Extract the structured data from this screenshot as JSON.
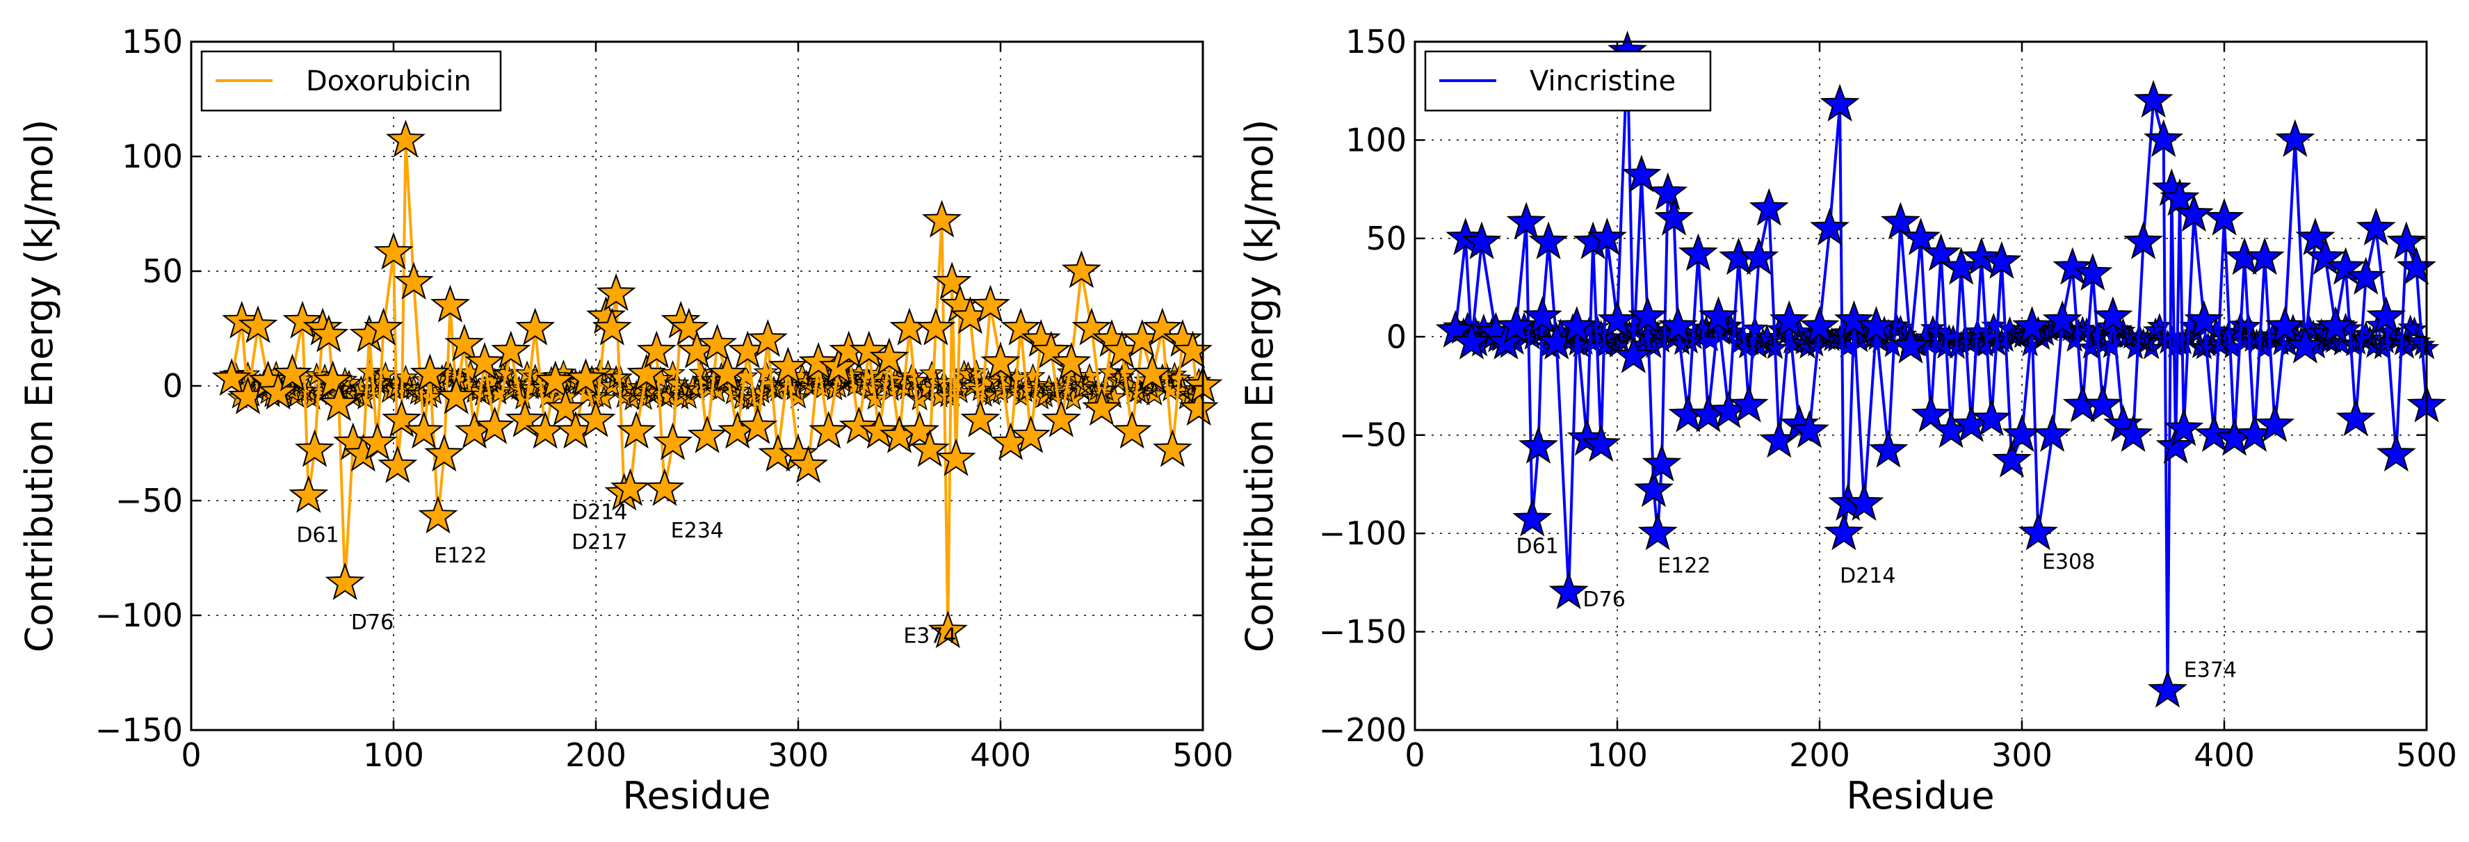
{
  "chart_data": [
    {
      "type": "line",
      "marker": "star",
      "xlabel": "Residue",
      "ylabel": "Contribution Energy (kJ/mol)",
      "xlim": [
        0,
        500
      ],
      "ylim": [
        -150,
        150
      ],
      "xticks": [
        0,
        100,
        200,
        300,
        400,
        500
      ],
      "yticks": [
        -150,
        -100,
        -50,
        0,
        50,
        100,
        150
      ],
      "xtick_labels": [
        "0",
        "100",
        "200",
        "300",
        "400",
        "500"
      ],
      "ytick_labels": [
        "−150",
        "−100",
        "−50",
        "0",
        "50",
        "100",
        "150"
      ],
      "grid": true,
      "legend_position": "top-left",
      "series": [
        {
          "name": "Doxorubicin",
          "color": "#FFA500",
          "marker_color": "#FFA500",
          "x": [
            20,
            25,
            28,
            33,
            38,
            43,
            50,
            55,
            58,
            61,
            65,
            68,
            70,
            73,
            76,
            80,
            85,
            88,
            92,
            95,
            100,
            102,
            104,
            106,
            110,
            115,
            118,
            122,
            125,
            128,
            131,
            135,
            140,
            145,
            150,
            158,
            165,
            170,
            175,
            180,
            185,
            190,
            195,
            200,
            205,
            208,
            210,
            214,
            217,
            220,
            225,
            230,
            234,
            238,
            242,
            246,
            250,
            255,
            260,
            265,
            270,
            275,
            280,
            285,
            290,
            295,
            300,
            305,
            310,
            315,
            320,
            325,
            330,
            335,
            340,
            345,
            350,
            355,
            360,
            365,
            368,
            371,
            374,
            376,
            378,
            380,
            385,
            390,
            395,
            400,
            405,
            410,
            415,
            420,
            425,
            430,
            435,
            440,
            445,
            450,
            455,
            460,
            465,
            470,
            475,
            480,
            485,
            490,
            495,
            498,
            500
          ],
          "values": [
            3,
            28,
            -5,
            26,
            2,
            -3,
            5,
            28,
            -48,
            -28,
            25,
            22,
            2,
            -8,
            -86,
            -25,
            -30,
            22,
            -25,
            25,
            58,
            -35,
            -15,
            107,
            45,
            -20,
            5,
            -57,
            -30,
            35,
            -5,
            18,
            -20,
            10,
            -18,
            15,
            -15,
            25,
            -20,
            2,
            -10,
            -20,
            3,
            -15,
            30,
            25,
            40,
            -47,
            -45,
            -20,
            5,
            15,
            -45,
            -25,
            28,
            25,
            15,
            -22,
            18,
            5,
            -20,
            15,
            -18,
            20,
            -30,
            8,
            -30,
            -35,
            10,
            -20,
            8,
            15,
            -18,
            15,
            -20,
            12,
            -22,
            25,
            -20,
            -28,
            25,
            72,
            -107,
            45,
            -32,
            35,
            30,
            -15,
            35,
            10,
            -25,
            25,
            -22,
            20,
            15,
            -15,
            10,
            50,
            25,
            -10,
            20,
            15,
            -20,
            20,
            5,
            25,
            -28,
            20,
            15,
            -10,
            0
          ]
        }
      ],
      "annotations": [
        {
          "text": "D61",
          "x": 52,
          "y": -68
        },
        {
          "text": "D76",
          "x": 79,
          "y": -106
        },
        {
          "text": "E122",
          "x": 120,
          "y": -77
        },
        {
          "text": "D214",
          "x": 188,
          "y": -58
        },
        {
          "text": "D217",
          "x": 188,
          "y": -71
        },
        {
          "text": "E234",
          "x": 237,
          "y": -66
        },
        {
          "text": "E374",
          "x": 352,
          "y": -112
        }
      ]
    },
    {
      "type": "line",
      "marker": "star",
      "xlabel": "Residue",
      "ylabel": "Contribution Energy (kJ/mol)",
      "xlim": [
        0,
        500
      ],
      "ylim": [
        -200,
        150
      ],
      "xticks": [
        0,
        100,
        200,
        300,
        400,
        500
      ],
      "yticks": [
        -200,
        -150,
        -100,
        -50,
        0,
        50,
        100,
        150
      ],
      "xtick_labels": [
        "0",
        "100",
        "200",
        "300",
        "400",
        "500"
      ],
      "ytick_labels": [
        "−200",
        "−150",
        "−100",
        "−50",
        "0",
        "50",
        "100",
        "150"
      ],
      "grid": true,
      "legend_position": "top-left",
      "series": [
        {
          "name": "Vincristine",
          "color": "#0000FF",
          "marker_color": "#0000FF",
          "x": [
            20,
            25,
            28,
            33,
            40,
            45,
            50,
            55,
            58,
            61,
            63,
            66,
            70,
            76,
            80,
            85,
            88,
            92,
            95,
            100,
            105,
            108,
            112,
            115,
            118,
            120,
            122,
            125,
            128,
            130,
            135,
            140,
            145,
            150,
            155,
            160,
            165,
            170,
            175,
            180,
            185,
            190,
            195,
            200,
            205,
            210,
            212,
            214,
            217,
            222,
            228,
            234,
            240,
            245,
            250,
            255,
            260,
            265,
            270,
            275,
            280,
            285,
            290,
            295,
            300,
            305,
            308,
            315,
            320,
            325,
            330,
            335,
            340,
            345,
            350,
            355,
            360,
            365,
            370,
            372,
            374,
            376,
            378,
            380,
            385,
            390,
            395,
            400,
            405,
            410,
            415,
            420,
            425,
            430,
            435,
            440,
            445,
            450,
            455,
            460,
            465,
            470,
            475,
            480,
            485,
            490,
            495,
            500
          ],
          "values": [
            3,
            50,
            -3,
            48,
            2,
            -3,
            5,
            58,
            -93,
            -56,
            10,
            48,
            -3,
            -130,
            5,
            -52,
            48,
            -55,
            50,
            8,
            145,
            -10,
            82,
            10,
            -78,
            -100,
            -65,
            73,
            60,
            5,
            -40,
            42,
            -40,
            10,
            -38,
            40,
            -35,
            40,
            65,
            -53,
            8,
            -45,
            -48,
            5,
            55,
            118,
            -100,
            -85,
            8,
            -85,
            5,
            -58,
            58,
            -5,
            50,
            -40,
            42,
            -48,
            35,
            -45,
            40,
            -42,
            38,
            -63,
            -50,
            5,
            -100,
            -50,
            8,
            35,
            -35,
            32,
            -35,
            10,
            -45,
            -50,
            48,
            120,
            100,
            -180,
            75,
            -56,
            70,
            -47,
            62,
            8,
            -50,
            60,
            -52,
            40,
            -50,
            40,
            -45,
            5,
            100,
            -5,
            50,
            40,
            5,
            35,
            -42,
            30,
            55,
            10,
            -60,
            48,
            35,
            -35
          ]
        }
      ],
      "annotations": [
        {
          "text": "D61",
          "x": 50,
          "y": -110
        },
        {
          "text": "D76",
          "x": 83,
          "y": -137
        },
        {
          "text": "E122",
          "x": 120,
          "y": -120
        },
        {
          "text": "D214",
          "x": 210,
          "y": -125
        },
        {
          "text": "E308",
          "x": 310,
          "y": -118
        },
        {
          "text": "E374",
          "x": 380,
          "y": -173
        }
      ]
    }
  ]
}
